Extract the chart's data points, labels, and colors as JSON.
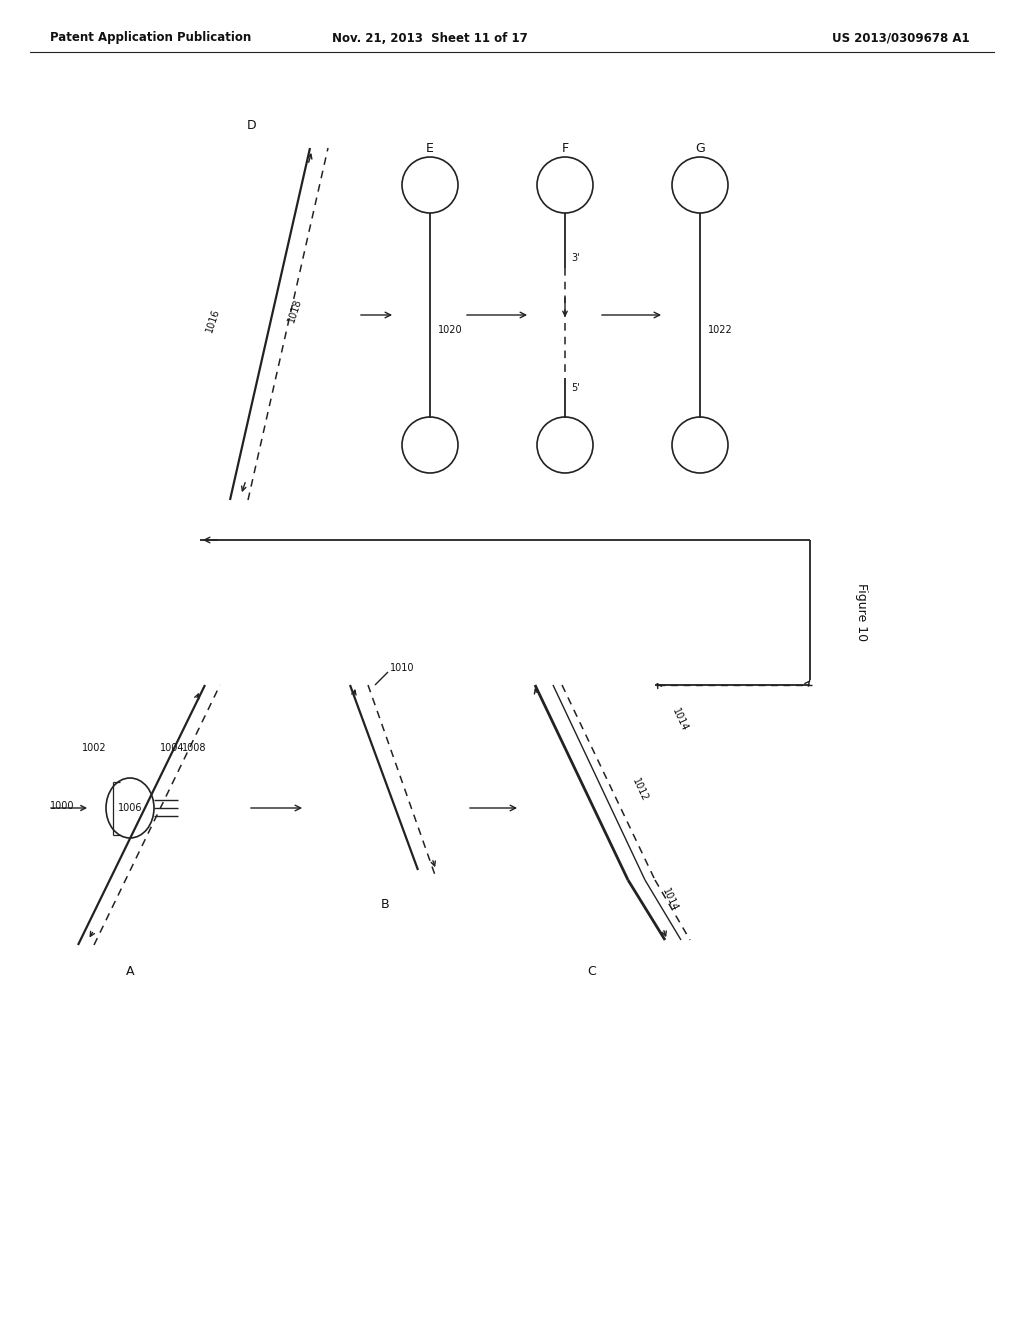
{
  "title_left": "Patent Application Publication",
  "title_mid": "Nov. 21, 2013  Sheet 11 of 17",
  "title_right": "US 2013/0309678 A1",
  "figure_label": "Figure 10",
  "bg_color": "#ffffff",
  "text_color": "#111111",
  "line_color": "#222222"
}
